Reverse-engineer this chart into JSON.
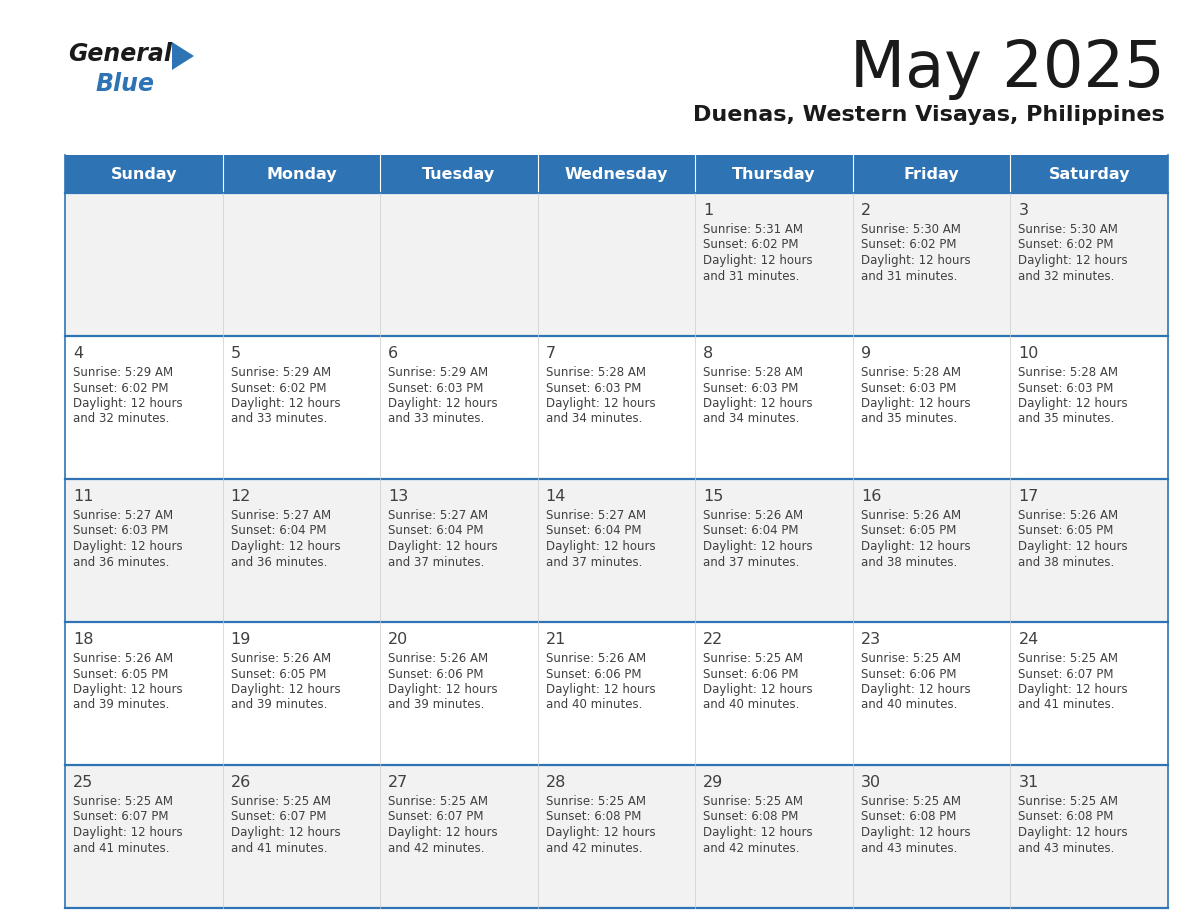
{
  "title": "May 2025",
  "subtitle": "Duenas, Western Visayas, Philippines",
  "header_bg": "#2E74B5",
  "header_text": "#FFFFFF",
  "cell_bg_odd": "#F2F2F2",
  "cell_bg_even": "#FFFFFF",
  "border_color": "#2E74B5",
  "text_color": "#404040",
  "days_of_week": [
    "Sunday",
    "Monday",
    "Tuesday",
    "Wednesday",
    "Thursday",
    "Friday",
    "Saturday"
  ],
  "calendar_data": [
    [
      {
        "day": "",
        "sunrise": "",
        "sunset": "",
        "daylight_min": ""
      },
      {
        "day": "",
        "sunrise": "",
        "sunset": "",
        "daylight_min": ""
      },
      {
        "day": "",
        "sunrise": "",
        "sunset": "",
        "daylight_min": ""
      },
      {
        "day": "",
        "sunrise": "",
        "sunset": "",
        "daylight_min": ""
      },
      {
        "day": "1",
        "sunrise": "5:31 AM",
        "sunset": "6:02 PM",
        "daylight_min": "31"
      },
      {
        "day": "2",
        "sunrise": "5:30 AM",
        "sunset": "6:02 PM",
        "daylight_min": "31"
      },
      {
        "day": "3",
        "sunrise": "5:30 AM",
        "sunset": "6:02 PM",
        "daylight_min": "32"
      }
    ],
    [
      {
        "day": "4",
        "sunrise": "5:29 AM",
        "sunset": "6:02 PM",
        "daylight_min": "32"
      },
      {
        "day": "5",
        "sunrise": "5:29 AM",
        "sunset": "6:02 PM",
        "daylight_min": "33"
      },
      {
        "day": "6",
        "sunrise": "5:29 AM",
        "sunset": "6:03 PM",
        "daylight_min": "33"
      },
      {
        "day": "7",
        "sunrise": "5:28 AM",
        "sunset": "6:03 PM",
        "daylight_min": "34"
      },
      {
        "day": "8",
        "sunrise": "5:28 AM",
        "sunset": "6:03 PM",
        "daylight_min": "34"
      },
      {
        "day": "9",
        "sunrise": "5:28 AM",
        "sunset": "6:03 PM",
        "daylight_min": "35"
      },
      {
        "day": "10",
        "sunrise": "5:28 AM",
        "sunset": "6:03 PM",
        "daylight_min": "35"
      }
    ],
    [
      {
        "day": "11",
        "sunrise": "5:27 AM",
        "sunset": "6:03 PM",
        "daylight_min": "36"
      },
      {
        "day": "12",
        "sunrise": "5:27 AM",
        "sunset": "6:04 PM",
        "daylight_min": "36"
      },
      {
        "day": "13",
        "sunrise": "5:27 AM",
        "sunset": "6:04 PM",
        "daylight_min": "37"
      },
      {
        "day": "14",
        "sunrise": "5:27 AM",
        "sunset": "6:04 PM",
        "daylight_min": "37"
      },
      {
        "day": "15",
        "sunrise": "5:26 AM",
        "sunset": "6:04 PM",
        "daylight_min": "37"
      },
      {
        "day": "16",
        "sunrise": "5:26 AM",
        "sunset": "6:05 PM",
        "daylight_min": "38"
      },
      {
        "day": "17",
        "sunrise": "5:26 AM",
        "sunset": "6:05 PM",
        "daylight_min": "38"
      }
    ],
    [
      {
        "day": "18",
        "sunrise": "5:26 AM",
        "sunset": "6:05 PM",
        "daylight_min": "39"
      },
      {
        "day": "19",
        "sunrise": "5:26 AM",
        "sunset": "6:05 PM",
        "daylight_min": "39"
      },
      {
        "day": "20",
        "sunrise": "5:26 AM",
        "sunset": "6:06 PM",
        "daylight_min": "39"
      },
      {
        "day": "21",
        "sunrise": "5:26 AM",
        "sunset": "6:06 PM",
        "daylight_min": "40"
      },
      {
        "day": "22",
        "sunrise": "5:25 AM",
        "sunset": "6:06 PM",
        "daylight_min": "40"
      },
      {
        "day": "23",
        "sunrise": "5:25 AM",
        "sunset": "6:06 PM",
        "daylight_min": "40"
      },
      {
        "day": "24",
        "sunrise": "5:25 AM",
        "sunset": "6:07 PM",
        "daylight_min": "41"
      }
    ],
    [
      {
        "day": "25",
        "sunrise": "5:25 AM",
        "sunset": "6:07 PM",
        "daylight_min": "41"
      },
      {
        "day": "26",
        "sunrise": "5:25 AM",
        "sunset": "6:07 PM",
        "daylight_min": "41"
      },
      {
        "day": "27",
        "sunrise": "5:25 AM",
        "sunset": "6:07 PM",
        "daylight_min": "42"
      },
      {
        "day": "28",
        "sunrise": "5:25 AM",
        "sunset": "6:08 PM",
        "daylight_min": "42"
      },
      {
        "day": "29",
        "sunrise": "5:25 AM",
        "sunset": "6:08 PM",
        "daylight_min": "42"
      },
      {
        "day": "30",
        "sunrise": "5:25 AM",
        "sunset": "6:08 PM",
        "daylight_min": "43"
      },
      {
        "day": "31",
        "sunrise": "5:25 AM",
        "sunset": "6:08 PM",
        "daylight_min": "43"
      }
    ]
  ]
}
